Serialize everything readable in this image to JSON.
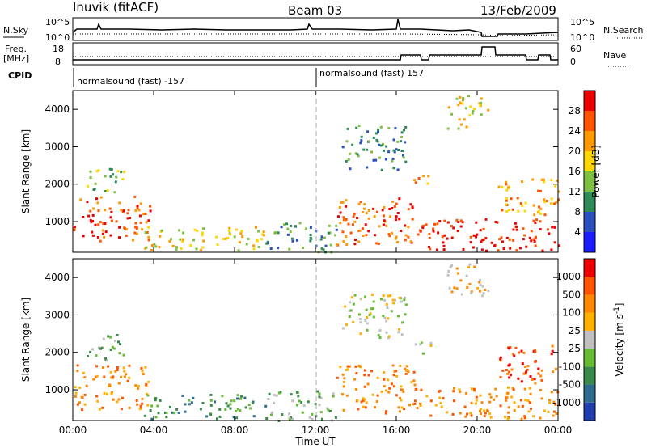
{
  "header": {
    "station": "Inuvik (fitACF)",
    "beam": "Beam 03",
    "date": "13/Feb/2009"
  },
  "summary_panels": {
    "nsky_label": "N.Sky",
    "nsearch_label": "N.Search",
    "nsky_ticks": [
      "10^5",
      "10^0"
    ],
    "nsearch_ticks": [
      "10^5",
      "10^0"
    ],
    "freq_label_1": "Freq.",
    "freq_label_2": "[MHz]",
    "freq_ticks": [
      "18",
      "8"
    ],
    "nave_label": "Nave",
    "nave_ticks": [
      "60",
      "0"
    ],
    "cpid_label": "CPID",
    "cpid_segments": [
      "normalsound (fast) -157",
      "normalsound (fast) 157"
    ]
  },
  "chart_data": [
    {
      "type": "heatmap",
      "title": "",
      "quantity": "Power",
      "ylabel": "Slant Range [km]",
      "xlabel": "Time UT",
      "ylim": [
        180,
        4500
      ],
      "x_ticks": [
        "00:00",
        "04:00",
        "08:00",
        "12:00",
        "16:00",
        "20:00",
        "00:00"
      ],
      "y_ticks": [
        1000,
        2000,
        3000,
        4000
      ],
      "colorbar": {
        "label": "Power [dB]",
        "ticks": [
          "4",
          "8",
          "12",
          "16",
          "20",
          "24",
          "28"
        ],
        "colors": [
          "#1a1aff",
          "#2a4fbf",
          "#2e8b57",
          "#7fbf3f",
          "#ffd700",
          "#ff9900",
          "#ff5500",
          "#ee0000"
        ]
      },
      "scatter_bands": [
        {
          "t0": 0.0,
          "t1": 3.8,
          "r0": 500,
          "r1": 1700,
          "level": 6
        },
        {
          "t0": 0.6,
          "t1": 2.5,
          "r0": 1800,
          "r1": 2500,
          "level": 3
        },
        {
          "t0": 3.5,
          "t1": 9.5,
          "r0": 250,
          "r1": 900,
          "level": 4
        },
        {
          "t0": 9.5,
          "t1": 13.0,
          "r0": 200,
          "r1": 1000,
          "level": 2
        },
        {
          "t0": 13.0,
          "t1": 17.0,
          "r0": 400,
          "r1": 1700,
          "level": 6
        },
        {
          "t0": 13.3,
          "t1": 16.5,
          "r0": 2400,
          "r1": 3600,
          "level": 2
        },
        {
          "t0": 16.8,
          "t1": 17.7,
          "r0": 1900,
          "r1": 2300,
          "level": 5
        },
        {
          "t0": 17.0,
          "t1": 24.0,
          "r0": 250,
          "r1": 1100,
          "level": 7
        },
        {
          "t0": 18.5,
          "t1": 20.5,
          "r0": 3500,
          "r1": 4400,
          "level": 4
        },
        {
          "t0": 21.0,
          "t1": 24.0,
          "r0": 1200,
          "r1": 2200,
          "level": 5
        }
      ]
    },
    {
      "type": "heatmap",
      "title": "",
      "quantity": "Velocity",
      "ylabel": "Slant Range [km]",
      "xlabel": "Time UT",
      "ylim": [
        180,
        4500
      ],
      "x_ticks": [
        "00:00",
        "04:00",
        "08:00",
        "12:00",
        "16:00",
        "20:00",
        "00:00"
      ],
      "y_ticks": [
        1000,
        2000,
        3000,
        4000
      ],
      "colorbar": {
        "label": "Velocity [m s^-1]",
        "ticks": [
          "1000",
          "500",
          "100",
          "25",
          "-25",
          "-100",
          "-500",
          "-1000"
        ],
        "colors": [
          "#1f3fb0",
          "#2e6b8f",
          "#3a8a4a",
          "#66bb33",
          "#c0c0c0",
          "#ffb000",
          "#ff8800",
          "#ff5500",
          "#ee0000"
        ]
      },
      "scatter_bands": [
        {
          "t0": 0.0,
          "t1": 3.8,
          "r0": 500,
          "r1": 1700,
          "level": 6
        },
        {
          "t0": 0.6,
          "t1": 2.5,
          "r0": 1800,
          "r1": 2500,
          "level": 3
        },
        {
          "t0": 3.5,
          "t1": 9.5,
          "r0": 250,
          "r1": 900,
          "level": 2
        },
        {
          "t0": 9.5,
          "t1": 13.0,
          "r0": 200,
          "r1": 1000,
          "level": 3
        },
        {
          "t0": 13.0,
          "t1": 17.0,
          "r0": 400,
          "r1": 1700,
          "level": 6
        },
        {
          "t0": 13.3,
          "t1": 16.5,
          "r0": 2400,
          "r1": 3600,
          "level": 4
        },
        {
          "t0": 16.8,
          "t1": 17.7,
          "r0": 1900,
          "r1": 2300,
          "level": 4
        },
        {
          "t0": 17.0,
          "t1": 24.0,
          "r0": 250,
          "r1": 1100,
          "level": 6
        },
        {
          "t0": 18.5,
          "t1": 20.5,
          "r0": 3500,
          "r1": 4400,
          "level": 5
        },
        {
          "t0": 21.0,
          "t1": 24.0,
          "r0": 1200,
          "r1": 2200,
          "level": 7
        }
      ]
    }
  ]
}
